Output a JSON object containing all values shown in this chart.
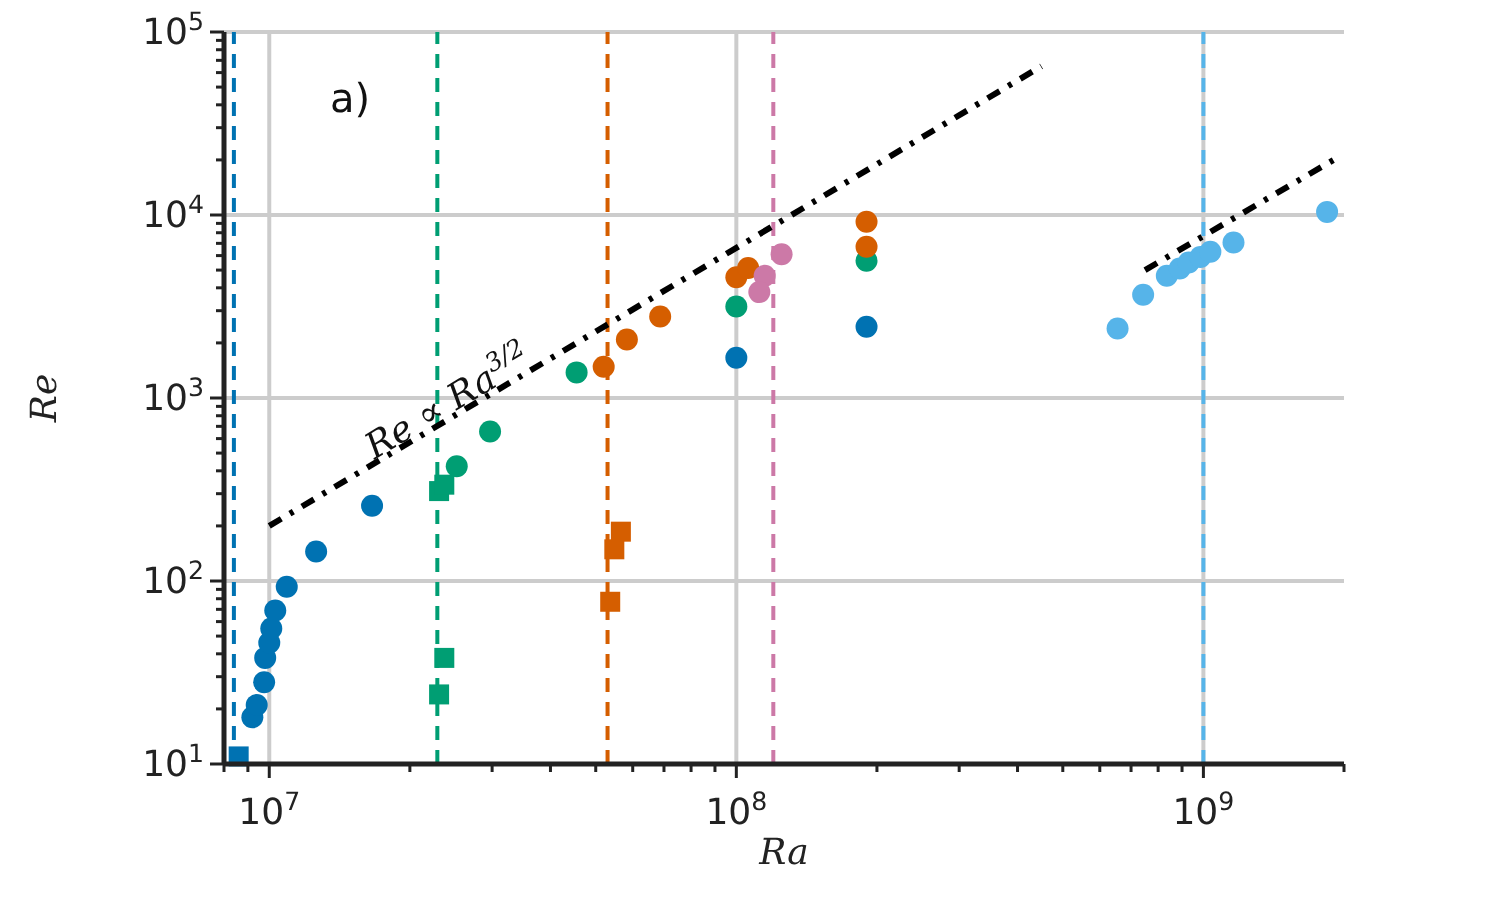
{
  "chart_data": {
    "type": "scatter",
    "xlabel": "Ra",
    "ylabel": "Re",
    "log": "xy",
    "grid": true,
    "xlim": [
      8000000,
      2000000000
    ],
    "ylim": [
      10,
      100000
    ],
    "xticks": [
      {
        "value": 8000000,
        "label": null
      },
      {
        "value": 9000000,
        "label": null
      },
      {
        "value": 10000000,
        "label": "10$^{7}$"
      },
      {
        "value": 20000000,
        "label": null
      },
      {
        "value": 30000000,
        "label": null
      },
      {
        "value": 40000000,
        "label": null
      },
      {
        "value": 50000000,
        "label": null
      },
      {
        "value": 60000000,
        "label": null
      },
      {
        "value": 70000000,
        "label": null
      },
      {
        "value": 80000000,
        "label": null
      },
      {
        "value": 90000000,
        "label": null
      },
      {
        "value": 100000000,
        "label": "10$^{8}$"
      },
      {
        "value": 200000000,
        "label": null
      },
      {
        "value": 300000000,
        "label": null
      },
      {
        "value": 400000000,
        "label": null
      },
      {
        "value": 500000000,
        "label": null
      },
      {
        "value": 600000000,
        "label": null
      },
      {
        "value": 700000000,
        "label": null
      },
      {
        "value": 800000000,
        "label": null
      },
      {
        "value": 900000000,
        "label": null
      },
      {
        "value": 1000000000,
        "label": "10$^{9}$"
      },
      {
        "value": 2000000000,
        "label": null
      }
    ],
    "yticks": [
      {
        "value": 10,
        "label": "10$^{1}$"
      },
      {
        "value": 20,
        "label": null
      },
      {
        "value": 30,
        "label": null
      },
      {
        "value": 40,
        "label": null
      },
      {
        "value": 50,
        "label": null
      },
      {
        "value": 60,
        "label": null
      },
      {
        "value": 70,
        "label": null
      },
      {
        "value": 80,
        "label": null
      },
      {
        "value": 90,
        "label": null
      },
      {
        "value": 100,
        "label": "10$^{2}$"
      },
      {
        "value": 200,
        "label": null
      },
      {
        "value": 300,
        "label": null
      },
      {
        "value": 400,
        "label": null
      },
      {
        "value": 500,
        "label": null
      },
      {
        "value": 600,
        "label": null
      },
      {
        "value": 700,
        "label": null
      },
      {
        "value": 800,
        "label": null
      },
      {
        "value": 900,
        "label": null
      },
      {
        "value": 1000,
        "label": "10$^{3}$"
      },
      {
        "value": 2000,
        "label": null
      },
      {
        "value": 3000,
        "label": null
      },
      {
        "value": 4000,
        "label": null
      },
      {
        "value": 5000,
        "label": null
      },
      {
        "value": 6000,
        "label": null
      },
      {
        "value": 7000,
        "label": null
      },
      {
        "value": 8000,
        "label": null
      },
      {
        "value": 9000,
        "label": null
      },
      {
        "value": 10000,
        "label": "10$^{4}$"
      },
      {
        "value": 20000,
        "label": null
      },
      {
        "value": 30000,
        "label": null
      },
      {
        "value": 40000,
        "label": null
      },
      {
        "value": 50000,
        "label": null
      },
      {
        "value": 60000,
        "label": null
      },
      {
        "value": 70000,
        "label": null
      },
      {
        "value": 80000,
        "label": null
      },
      {
        "value": 90000,
        "label": null
      },
      {
        "value": 100000,
        "label": "10$^{5}$"
      }
    ],
    "annotations": [
      "a)",
      "Re ∝ Ra$^{3/2}$"
    ],
    "ref_lines": [
      {
        "axis": "x",
        "value": 8400000,
        "color": "#0072b2",
        "line_style": "dashed"
      },
      {
        "axis": "x",
        "value": 22900000,
        "color": "#009e73",
        "line_style": "dashed"
      },
      {
        "axis": "x",
        "value": 53000000,
        "color": "#d55e00",
        "line_style": "dashed"
      },
      {
        "axis": "x",
        "value": 120000000,
        "color": "#cc79a7",
        "line_style": "dashed"
      },
      {
        "axis": "x",
        "value": 1000000000,
        "color": "#56b4e9",
        "line_style": "dashed"
      }
    ],
    "series": [
      {
        "color": "#0072b2",
        "marker": "circle",
        "x": [
          9200000,
          9400000,
          9750000,
          9800000,
          10000000,
          10100000,
          10300000,
          10900000,
          12600000,
          16600000,
          100000000,
          190000000
        ],
        "values": [
          18,
          21,
          28,
          38,
          46,
          55,
          69,
          93,
          145,
          258,
          1660,
          2450
        ]
      },
      {
        "color": "#0072b2",
        "marker": "square",
        "x": [
          8600000
        ],
        "values": [
          11
        ]
      },
      {
        "color": "#009e73",
        "marker": "circle",
        "x": [
          25200000,
          29700000,
          45500000,
          100000000,
          190000000
        ],
        "values": [
          424,
          656,
          1380,
          3160,
          5620
        ]
      },
      {
        "color": "#009e73",
        "marker": "square",
        "x": [
          23100000,
          23700000,
          23700000,
          23100000
        ],
        "values": [
          310,
          336,
          38,
          24
        ]
      },
      {
        "color": "#d55e00",
        "marker": "circle",
        "x": [
          52000000,
          58300000,
          68700000,
          100000000,
          106000000,
          190000000,
          190000000
        ],
        "values": [
          1480,
          2090,
          2790,
          4570,
          5130,
          9190,
          6700
        ]
      },
      {
        "color": "#d55e00",
        "marker": "square",
        "x": [
          56600000,
          54800000,
          53700000
        ],
        "values": [
          186,
          149,
          77
        ]
      },
      {
        "color": "#cc79a7",
        "marker": "circle",
        "x": [
          125000000,
          115000000,
          112000000
        ],
        "values": [
          6110,
          4660,
          3790
        ]
      },
      {
        "color": "#56b4e9",
        "marker": "circle",
        "x": [
          655000000,
          743000000,
          835000000,
          890000000,
          930000000,
          985000000,
          1035000000,
          1160000000,
          1840000000
        ],
        "values": [
          2400,
          3670,
          4660,
          5100,
          5500,
          5890,
          6300,
          7080,
          10400
        ]
      },
      {
        "type": "line",
        "color": "#000000",
        "line_style": "dashdot",
        "marker": "none",
        "x": [
          10000000,
          450000000
        ],
        "values": [
          200,
          65000
        ]
      },
      {
        "type": "line",
        "color": "#000000",
        "line_style": "dashdot",
        "marker": "none",
        "x": [
          750000000,
          1900000000
        ],
        "values": [
          5000,
          20000
        ]
      }
    ]
  }
}
